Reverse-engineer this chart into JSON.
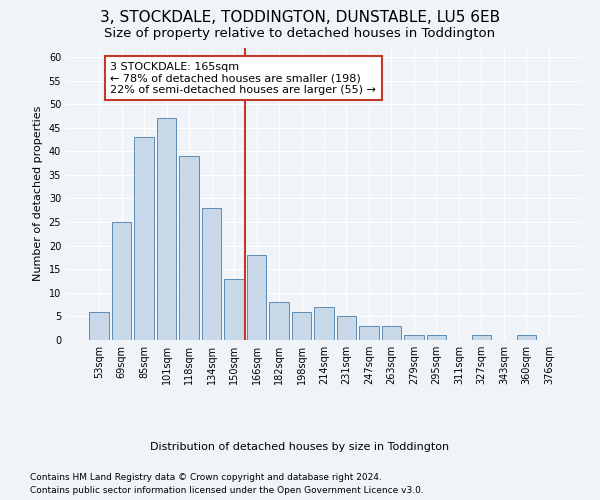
{
  "title": "3, STOCKDALE, TODDINGTON, DUNSTABLE, LU5 6EB",
  "subtitle": "Size of property relative to detached houses in Toddington",
  "xlabel": "Distribution of detached houses by size in Toddington",
  "ylabel": "Number of detached properties",
  "categories": [
    "53sqm",
    "69sqm",
    "85sqm",
    "101sqm",
    "118sqm",
    "134sqm",
    "150sqm",
    "166sqm",
    "182sqm",
    "198sqm",
    "214sqm",
    "231sqm",
    "247sqm",
    "263sqm",
    "279sqm",
    "295sqm",
    "311sqm",
    "327sqm",
    "343sqm",
    "360sqm",
    "376sqm"
  ],
  "values": [
    6,
    25,
    43,
    47,
    39,
    28,
    13,
    18,
    8,
    6,
    7,
    5,
    3,
    3,
    1,
    1,
    0,
    1,
    0,
    1,
    0
  ],
  "bar_color": "#c8d8e8",
  "bar_edge_color": "#5b8db8",
  "vline_x_index": 7,
  "vline_color": "#c0392b",
  "annotation_text": "3 STOCKDALE: 165sqm\n← 78% of detached houses are smaller (198)\n22% of semi-detached houses are larger (55) →",
  "annotation_box_color": "#ffffff",
  "annotation_box_edge": "#c0392b",
  "ylim": [
    0,
    62
  ],
  "yticks": [
    0,
    5,
    10,
    15,
    20,
    25,
    30,
    35,
    40,
    45,
    50,
    55,
    60
  ],
  "footnote1": "Contains HM Land Registry data © Crown copyright and database right 2024.",
  "footnote2": "Contains public sector information licensed under the Open Government Licence v3.0.",
  "background_color": "#f0f4f8",
  "plot_background_color": "#f0f4f8",
  "title_fontsize": 11,
  "subtitle_fontsize": 9.5,
  "axis_label_fontsize": 8,
  "tick_fontsize": 7,
  "annotation_fontsize": 8,
  "footnote_fontsize": 6.5
}
